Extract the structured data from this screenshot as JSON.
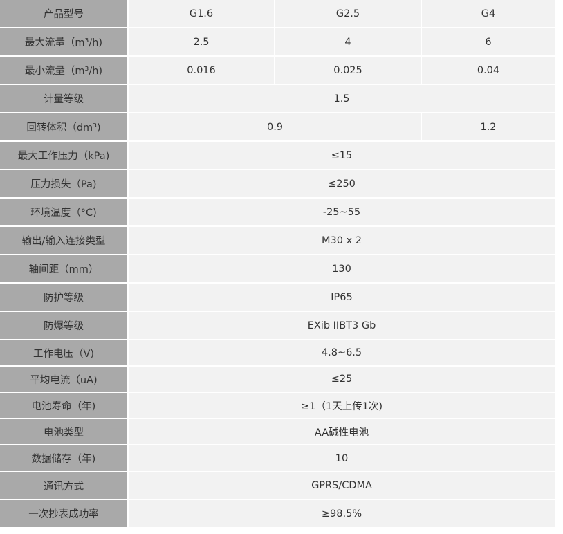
{
  "spec_table": {
    "rows": [
      {
        "label": "产品型号",
        "values": [
          "G1.6",
          "G2.5",
          "G4"
        ]
      },
      {
        "label": "最大流量（m³/h)",
        "values": [
          "2.5",
          "4",
          "6"
        ]
      },
      {
        "label": "最小流量（m³/h)",
        "values": [
          "0.016",
          "0.025",
          "0.04"
        ]
      },
      {
        "label": "计量等级",
        "values": [
          "1.5"
        ]
      },
      {
        "label": "回转体积（dm³)",
        "values": [
          "0.9",
          "1.2"
        ]
      },
      {
        "label": "最大工作压力（kPa)",
        "values": [
          "≤15"
        ]
      },
      {
        "label": "压力损失（Pa)",
        "values": [
          "≤250"
        ]
      },
      {
        "label": "环境温度（°C)",
        "values": [
          "-25~55"
        ]
      },
      {
        "label": "输出/输入连接类型",
        "values": [
          "M30 x 2"
        ]
      },
      {
        "label": "轴间距（mm）",
        "values": [
          "130"
        ]
      },
      {
        "label": "防护等级",
        "values": [
          "IP65"
        ]
      },
      {
        "label": "防爆等级",
        "values": [
          "EXib IIBT3 Gb"
        ]
      },
      {
        "label": "工作电压（V)",
        "values": [
          "4.8~6.5"
        ]
      },
      {
        "label": "平均电流（uA)",
        "values": [
          "≤25"
        ]
      },
      {
        "label": "电池寿命（年)",
        "values": [
          "≥1（1天上传1次)"
        ]
      },
      {
        "label": "电池类型",
        "values": [
          "AA碱性电池"
        ]
      },
      {
        "label": "数据储存（年)",
        "values": [
          "10"
        ]
      },
      {
        "label": "通讯方式",
        "values": [
          "GPRS/CDMA"
        ]
      },
      {
        "label": "一次抄表成功率",
        "values": [
          "≥98.5%"
        ]
      }
    ]
  },
  "colors": {
    "label_bg": "#a9a9a9",
    "value_bg": "#f2f2f2",
    "text": "#333333"
  }
}
